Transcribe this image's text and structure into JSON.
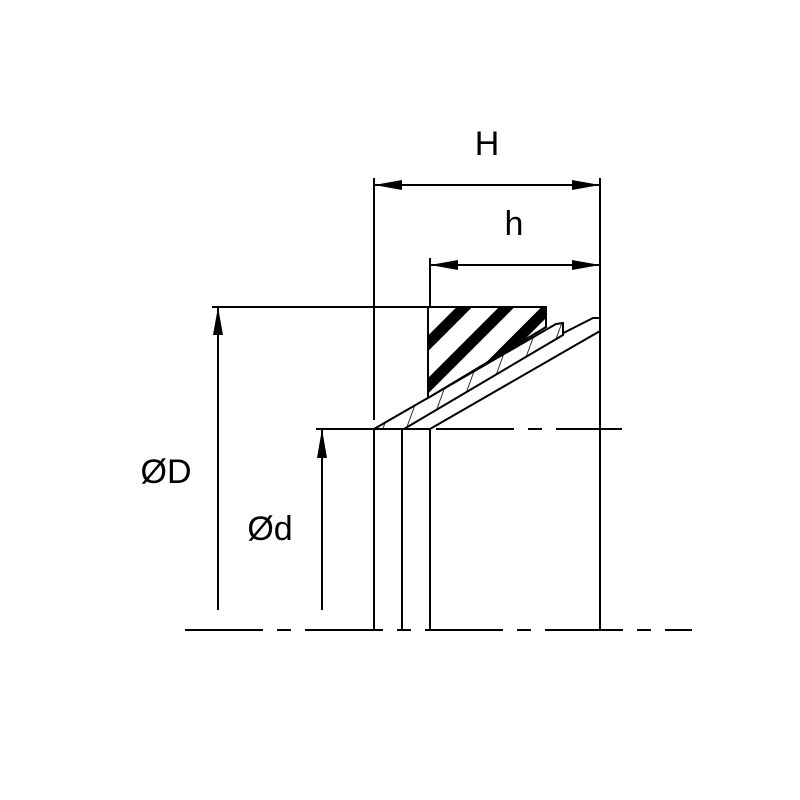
{
  "labels": {
    "H": "H",
    "h": "h",
    "D": "ØD",
    "d": "Ød"
  },
  "colors": {
    "line": "#000000",
    "background": "#ffffff"
  }
}
